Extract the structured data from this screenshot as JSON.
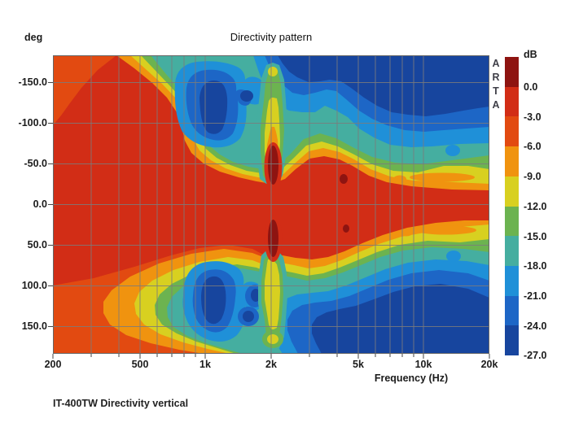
{
  "header": {
    "title": "Directivity pattern"
  },
  "y_axis": {
    "unit_label": "deg",
    "tick_labels": [
      "-150.0",
      "-100.0",
      "-50.0",
      "0.0",
      "50.0",
      "100.0",
      "150.0"
    ]
  },
  "x_axis": {
    "label": "Frequency (Hz)",
    "tick_labels": [
      "200",
      "500",
      "1k",
      "2k",
      "5k",
      "10k",
      "20k"
    ]
  },
  "colorbar": {
    "unit_label": "dB",
    "tick_labels": [
      "0.0",
      "-3.0",
      "-6.0",
      "-9.0",
      "-12.0",
      "-15.0",
      "-18.0",
      "-21.0",
      "-24.0",
      "-27.0"
    ]
  },
  "watermark": {
    "letters": [
      "A",
      "R",
      "T",
      "A"
    ]
  },
  "caption": "IT-400TW Directivity vertical",
  "chart_data": {
    "type": "heatmap",
    "title": "Directivity pattern",
    "xlabel": "Frequency (Hz)",
    "x_scale": "log",
    "x_range_hz": [
      200,
      20000
    ],
    "x_tick_labels": [
      "200",
      "500",
      "1k",
      "2k",
      "5k",
      "10k",
      "20k"
    ],
    "ylabel": "deg",
    "y_range_deg": [
      -180,
      180
    ],
    "y_ticks_deg": [
      -150,
      -100,
      -50,
      0,
      50,
      100,
      150
    ],
    "z_unit": "dB",
    "z_levels_db": [
      0,
      -3,
      -6,
      -9,
      -12,
      -15,
      -18,
      -21,
      -24,
      -27
    ],
    "grid": true,
    "legend_position": "right-colorbar",
    "palette": {
      "maroon": "#8e1411",
      "red": "#d22d16",
      "redOrange": "#e24a11",
      "orange": "#f0930f",
      "yellow": "#d8d020",
      "green": "#6cb350",
      "teal": "#45aea0",
      "lightblue": "#1f90d8",
      "blue": "#1d66c6",
      "navy": "#17459e"
    },
    "features": [
      "On-axis (0 deg) band stays above -3 dB from 200 Hz to 20 kHz, narrowing to about +/-20 deg above 5 kHz",
      "Hottest spots (~0 dB, darkest red) near 2 kHz at about -55..-25 deg and +25..+55 deg, plus small spots near 4.5 kHz at +/-30 deg",
      "Deep nulls (below -24 dB, dark blue) centered near 1 kHz at roughly -140..-70 deg and +70..+140 deg",
      "Narrow vertical interference notch at ~2 kHz (yellow/green plume) reaching to about +/-170 deg",
      "Above ~2.5 kHz the rear hemisphere (|angle| > 100 deg) falls below -24 dB (dark blue corners)",
      "Below ~500 Hz the response is nearly omnidirectional (above -6 dB at all angles)"
    ]
  }
}
